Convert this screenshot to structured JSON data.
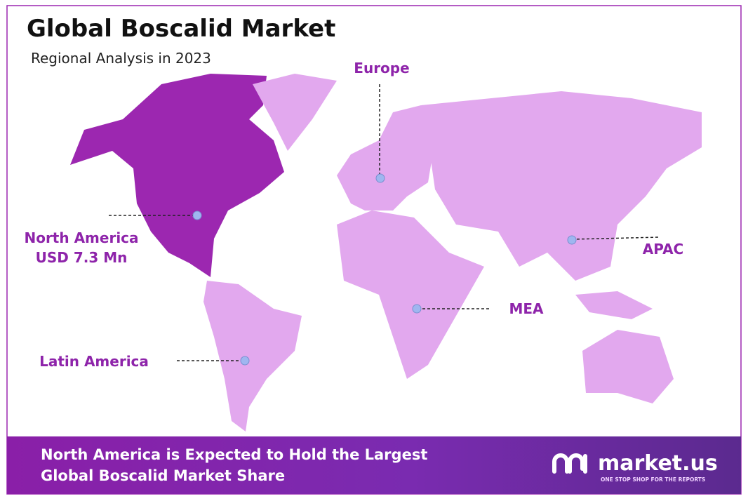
{
  "header": {
    "title": "Global Boscalid Market",
    "subtitle": "Regional Analysis in 2023"
  },
  "regions": [
    {
      "name": "North America",
      "value_label": "USD 7.3 Mn"
    },
    {
      "name": "Europe"
    },
    {
      "name": "APAC"
    },
    {
      "name": "MEA"
    },
    {
      "name": "Latin America"
    }
  ],
  "footer": {
    "lines": [
      "North America  is Expected to Hold the Largest",
      "Global Boscalid Market Share"
    ]
  },
  "logo": {
    "name": "market.us",
    "tagline": "ONE STOP SHOP FOR THE REPORTS"
  }
}
